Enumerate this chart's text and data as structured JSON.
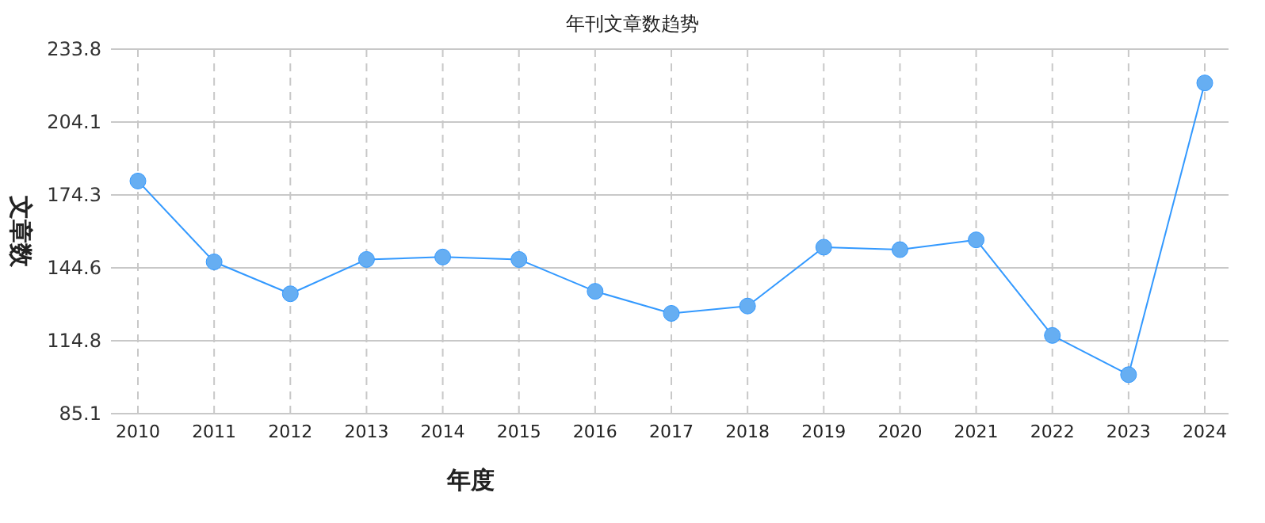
{
  "chart_data": {
    "type": "line",
    "title": "年刊文章数趋势",
    "xlabel": "年度",
    "ylabel": "文章数",
    "categories": [
      "2010",
      "2011",
      "2012",
      "2013",
      "2014",
      "2015",
      "2016",
      "2017",
      "2018",
      "2019",
      "2020",
      "2021",
      "2022",
      "2023",
      "2024"
    ],
    "series": [
      {
        "color": "#3399ff",
        "values": [
          180,
          147,
          134,
          148,
          149,
          148,
          135,
          126,
          129,
          153,
          152,
          156,
          117,
          101,
          220
        ]
      }
    ],
    "ylim": [
      85.1,
      233.8
    ],
    "yticks": [
      85.1,
      114.8,
      144.6,
      174.3,
      204.1,
      233.8
    ],
    "grid": true,
    "marker": "circle",
    "line_style": "solid"
  }
}
